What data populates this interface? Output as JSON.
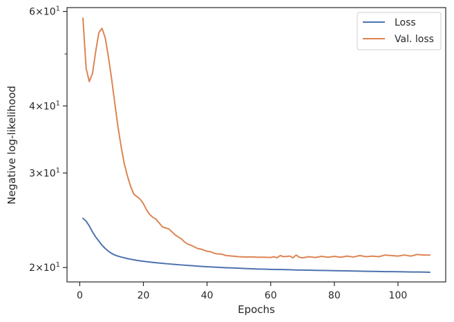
{
  "chart_data": {
    "type": "line",
    "xlabel": "Epochs",
    "ylabel": "Negative log-likelihood",
    "yscale": "log",
    "xlim": [
      -4,
      115
    ],
    "ylim": [
      18.8,
      61
    ],
    "x_ticks": [
      0,
      20,
      40,
      60,
      80,
      100
    ],
    "x_tick_labels": [
      "0",
      "20",
      "40",
      "60",
      "80",
      "100"
    ],
    "y_major_ticks": [
      20,
      30,
      40,
      60
    ],
    "y_tick_labels": {
      "20": {
        "base": "2",
        "exp": "1"
      },
      "30": {
        "base": "3",
        "exp": "1"
      },
      "40": {
        "base": "4",
        "exp": "1"
      },
      "60": {
        "base": "6",
        "exp": "1"
      }
    },
    "y_minor_ticks": [
      50
    ],
    "grid": false,
    "legend": {
      "position": "upper-right"
    },
    "series": [
      {
        "name": "Loss",
        "color": "#4c72b0",
        "x": [
          1,
          2,
          3,
          4,
          5,
          6,
          7,
          8,
          9,
          10,
          11,
          12,
          13,
          14,
          15,
          16,
          17,
          18,
          19,
          20,
          22,
          24,
          26,
          28,
          30,
          32,
          34,
          36,
          38,
          40,
          42,
          44,
          46,
          48,
          50,
          52,
          54,
          56,
          58,
          60,
          62,
          64,
          66,
          68,
          70,
          72,
          74,
          76,
          78,
          80,
          82,
          84,
          86,
          88,
          90,
          92,
          94,
          96,
          98,
          100,
          102,
          104,
          106,
          108,
          110
        ],
        "values": [
          24.7,
          24.4,
          23.9,
          23.3,
          22.8,
          22.4,
          22.0,
          21.7,
          21.45,
          21.25,
          21.1,
          21.0,
          20.92,
          20.85,
          20.78,
          20.72,
          20.67,
          20.62,
          20.58,
          20.54,
          20.47,
          20.41,
          20.36,
          20.31,
          20.26,
          20.22,
          20.18,
          20.14,
          20.1,
          20.07,
          20.04,
          20.01,
          19.98,
          19.96,
          19.94,
          19.91,
          19.89,
          19.87,
          19.86,
          19.84,
          19.83,
          19.82,
          19.81,
          19.79,
          19.78,
          19.77,
          19.76,
          19.75,
          19.74,
          19.73,
          19.72,
          19.71,
          19.7,
          19.69,
          19.68,
          19.67,
          19.66,
          19.65,
          19.65,
          19.64,
          19.63,
          19.62,
          19.62,
          19.61,
          19.6
        ]
      },
      {
        "name": "Val. loss",
        "color": "#dd8452",
        "x": [
          1,
          2,
          3,
          4,
          5,
          6,
          7,
          8,
          9,
          10,
          11,
          12,
          13,
          14,
          15,
          16,
          17,
          18,
          19,
          20,
          21,
          22,
          23,
          24,
          25,
          26,
          27,
          28,
          29,
          30,
          31,
          32,
          33,
          34,
          35,
          36,
          37,
          38,
          39,
          40,
          41,
          42,
          43,
          44,
          45,
          46,
          48,
          50,
          52,
          54,
          56,
          58,
          60,
          61,
          62,
          63,
          64,
          65,
          66,
          67,
          68,
          69,
          70,
          72,
          74,
          76,
          78,
          80,
          82,
          84,
          86,
          88,
          90,
          92,
          94,
          96,
          98,
          100,
          102,
          104,
          106,
          108,
          110
        ],
        "values": [
          58.3,
          47.0,
          44.4,
          46.0,
          50.5,
          54.8,
          55.8,
          53.6,
          49.4,
          45.0,
          40.5,
          36.6,
          33.6,
          31.2,
          29.6,
          28.3,
          27.4,
          27.1,
          26.8,
          26.3,
          25.6,
          25.1,
          24.8,
          24.6,
          24.2,
          23.8,
          23.7,
          23.6,
          23.3,
          23.0,
          22.8,
          22.6,
          22.3,
          22.1,
          22.0,
          21.85,
          21.7,
          21.65,
          21.55,
          21.45,
          21.4,
          21.3,
          21.2,
          21.2,
          21.15,
          21.05,
          21.0,
          20.95,
          20.92,
          20.93,
          20.9,
          20.9,
          20.88,
          20.95,
          20.85,
          21.05,
          20.95,
          20.98,
          21.0,
          20.85,
          21.1,
          20.9,
          20.85,
          20.95,
          20.88,
          20.98,
          20.9,
          20.98,
          20.9,
          21.0,
          20.92,
          21.05,
          20.95,
          21.0,
          20.95,
          21.1,
          21.05,
          21.0,
          21.1,
          21.0,
          21.15,
          21.1,
          21.1
        ]
      }
    ]
  }
}
